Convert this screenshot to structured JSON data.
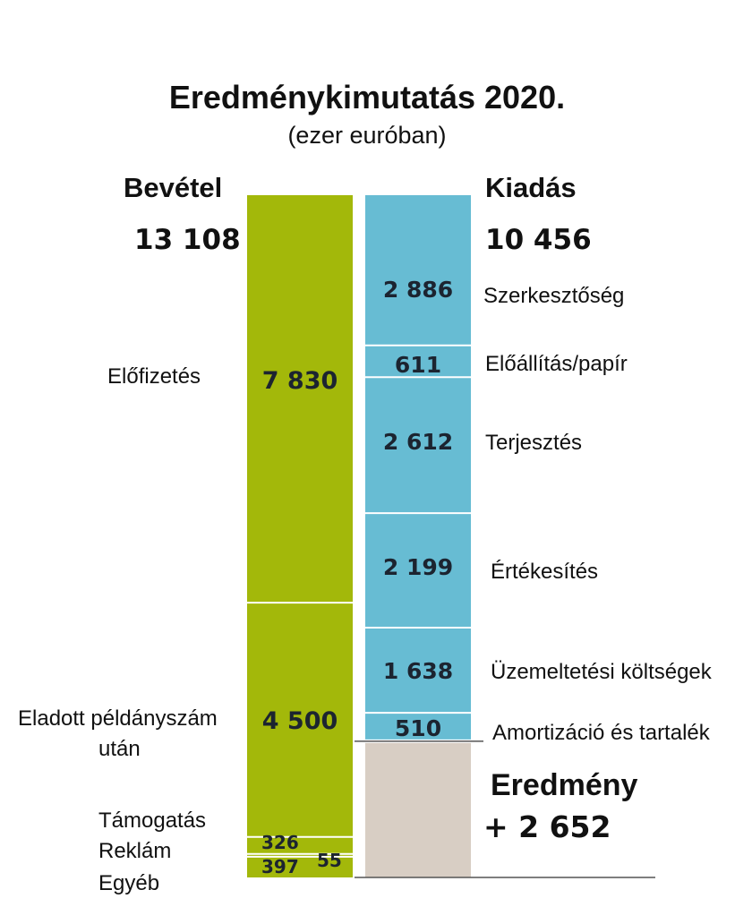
{
  "title": "Eredménykimutatás 2020.",
  "subtitle": "(ezer euróban)",
  "colors": {
    "income": "#a3b80a",
    "expense": "#67bcd3",
    "result": "#d8cec4",
    "label_dark": "#1c2430"
  },
  "chart_data": {
    "type": "bar",
    "stacked": true,
    "unit": "ezer euró",
    "ylim": [
      0,
      13108
    ],
    "series": [
      {
        "name": "Bevétel",
        "total_label": "13 108",
        "total": 13108,
        "items": [
          {
            "category": "Előfizetés",
            "value": 7830,
            "value_label": "7 830"
          },
          {
            "category": "Eladott példányszám után",
            "value": 4500,
            "value_label": "4 500"
          },
          {
            "category": "Támogatás",
            "value": 326,
            "value_label": "326"
          },
          {
            "category": "Reklám",
            "value": 55,
            "value_label": "55"
          },
          {
            "category": "Egyéb",
            "value": 397,
            "value_label": "397"
          }
        ]
      },
      {
        "name": "Kiadás",
        "total_label": "10 456",
        "total": 10456,
        "items": [
          {
            "category": "Szerkesztőség",
            "value": 2886,
            "value_label": "2 886"
          },
          {
            "category": "Előállítás/papír",
            "value": 611,
            "value_label": "611"
          },
          {
            "category": "Terjesztés",
            "value": 2612,
            "value_label": "2 612"
          },
          {
            "category": "Értékesítés",
            "value": 2199,
            "value_label": "2 199"
          },
          {
            "category": "Üzemeltetési költségek",
            "value": 1638,
            "value_label": "1 638"
          },
          {
            "category": "Amortizáció és tartalék",
            "value": 510,
            "value_label": "510"
          }
        ]
      }
    ],
    "result": {
      "label": "Eredmény",
      "value": 2652,
      "value_label": "+ 2 652"
    }
  },
  "labels": {
    "income_head": "Bevétel",
    "expense_head": "Kiadás",
    "income_cats": {
      "elofizetes": "Előfizetés",
      "eladott_line1": "Eladott példányszám",
      "eladott_line2": "után",
      "tamogatas": "Támogatás",
      "reklam": "Reklám",
      "egyeb": "Egyéb"
    }
  }
}
